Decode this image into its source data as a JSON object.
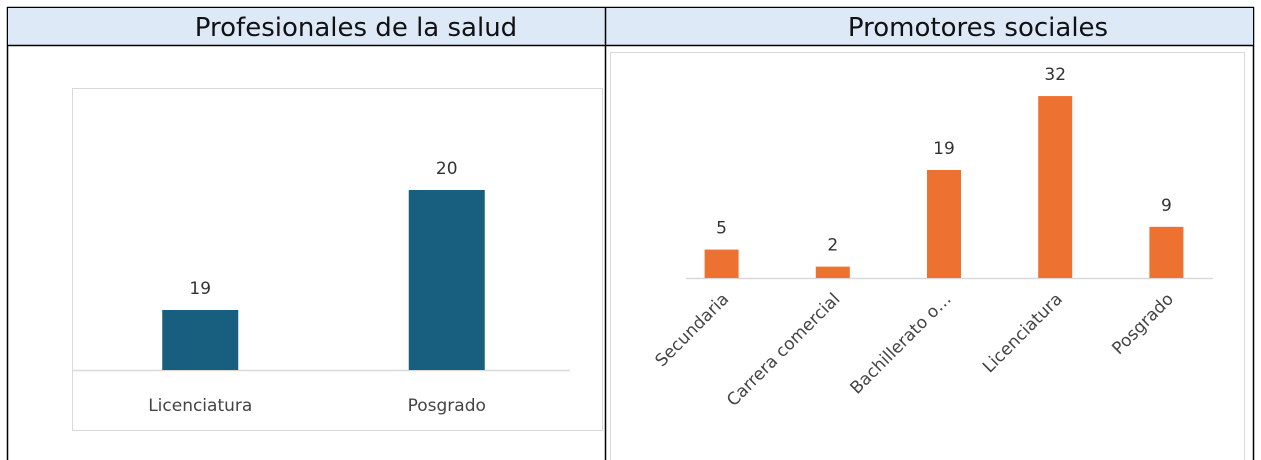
{
  "chart_data": [
    {
      "type": "bar",
      "title": "Profesionales de la salud",
      "categories": [
        "Licenciatura",
        "Posgrado"
      ],
      "values": [
        19,
        20
      ],
      "color": "#175e7f",
      "ylim": [
        18.5,
        20.5
      ]
    },
    {
      "type": "bar",
      "title": "Promotores sociales",
      "categories": [
        "Secundaria",
        "Carrera comercial",
        "Bachillerato o…",
        "Licenciatura",
        "Posgrado"
      ],
      "values": [
        5,
        2,
        19,
        32,
        9
      ],
      "color": "#ed7231",
      "ylim": [
        0,
        35
      ]
    }
  ]
}
